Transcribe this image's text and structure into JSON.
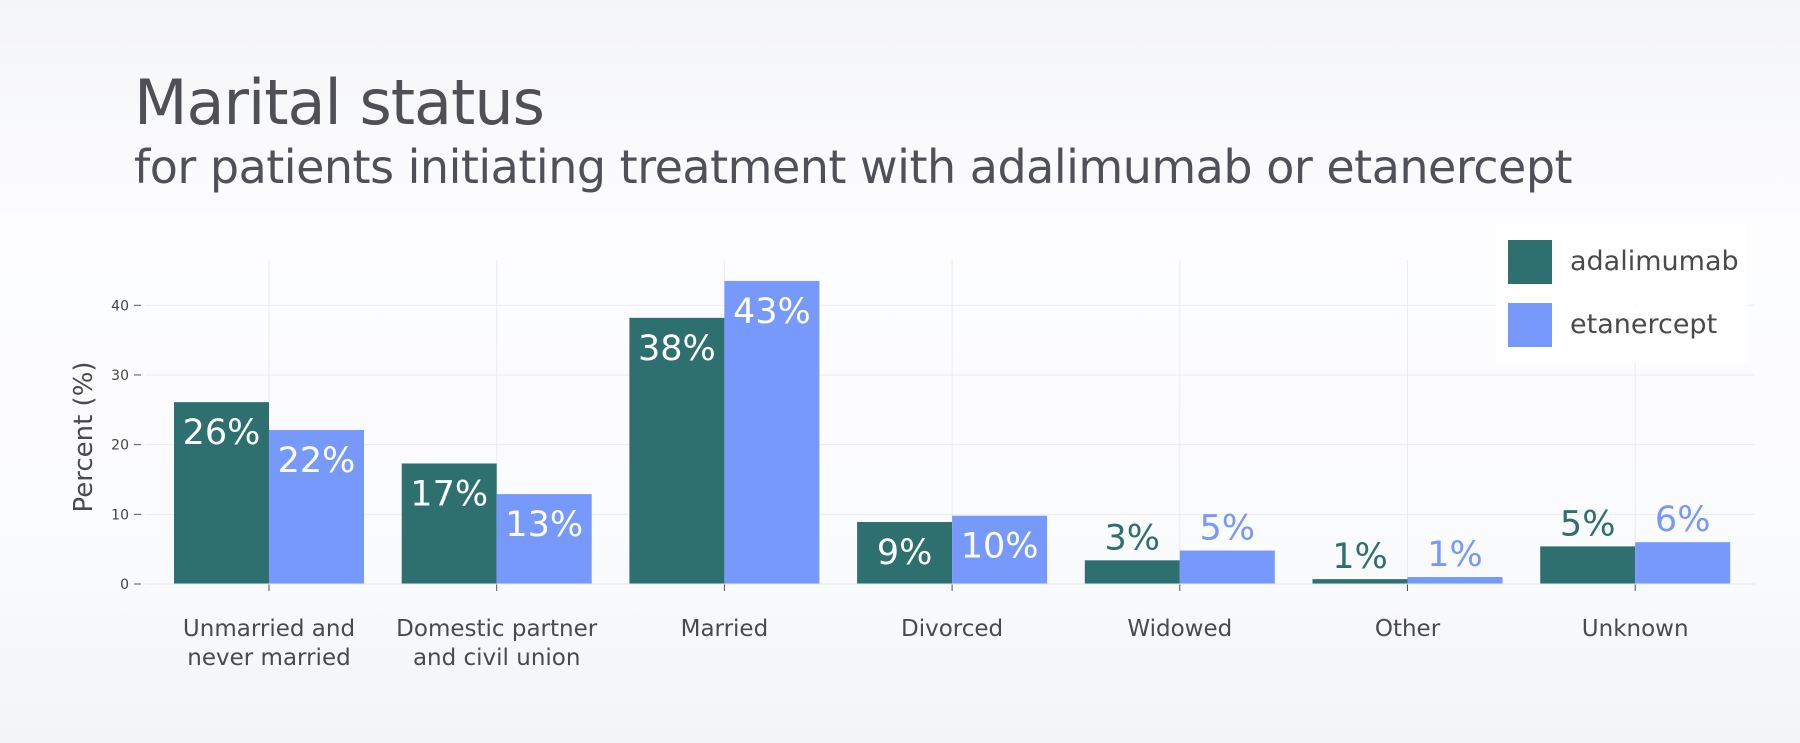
{
  "chart_data": {
    "type": "bar",
    "title": "Marital status",
    "subtitle": "for patients initiating treatment with adalimumab or etanercept",
    "ylabel": "Percent (%)",
    "xlabel": "",
    "ylim": [
      0,
      46.5
    ],
    "yticks": [
      0,
      10,
      20,
      30,
      40
    ],
    "categories": [
      [
        "Unmarried and",
        "never married"
      ],
      [
        "Domestic partner",
        "and civil union"
      ],
      [
        "Married"
      ],
      [
        "Divorced"
      ],
      [
        "Widowed"
      ],
      [
        "Other"
      ],
      [
        "Unknown"
      ]
    ],
    "series": [
      {
        "name": "adalimumab",
        "color": "#2e7070",
        "values": [
          26.1,
          17.3,
          38.2,
          8.9,
          3.4,
          0.7,
          5.4
        ],
        "labels": [
          "26%",
          "17%",
          "38%",
          "9%",
          "3%",
          "1%",
          "5%"
        ]
      },
      {
        "name": "etanercept",
        "color": "#7899fc",
        "values": [
          22.1,
          12.9,
          43.5,
          9.8,
          4.8,
          1.0,
          6.0
        ],
        "labels": [
          "22%",
          "13%",
          "43%",
          "10%",
          "5%",
          "1%",
          "6%"
        ]
      }
    ],
    "grid": true,
    "legend_position": "top-right"
  }
}
